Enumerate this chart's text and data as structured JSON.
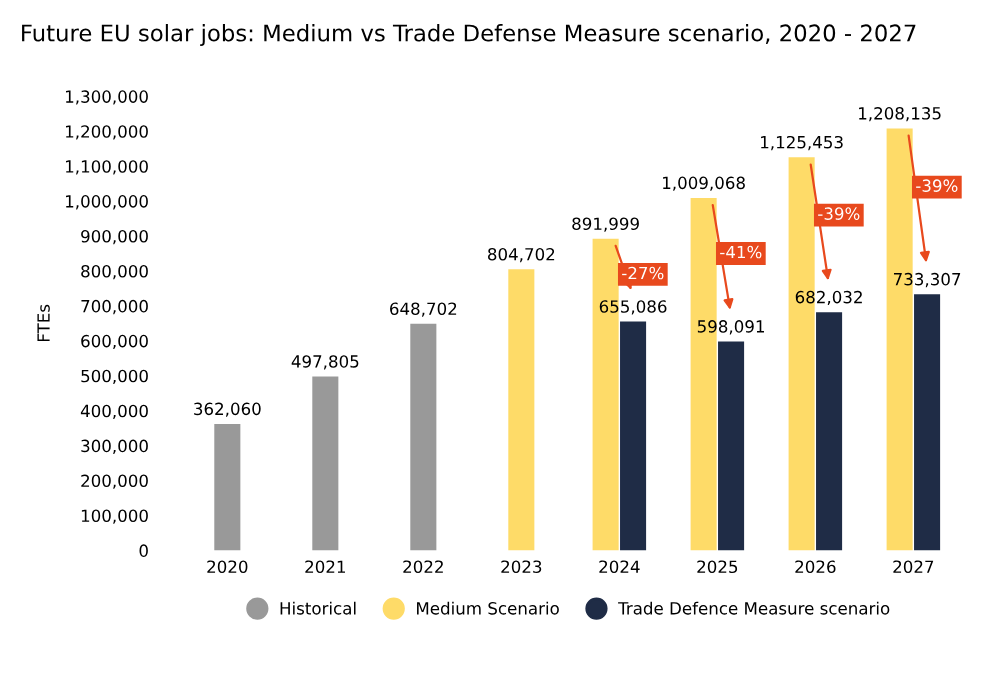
{
  "chart_data": {
    "type": "bar",
    "title": "Future EU solar jobs: Medium vs Trade Defense Measure scenario, 2020 - 2027",
    "ylabel": "FTEs",
    "categories": [
      "2020",
      "2021",
      "2022",
      "2023",
      "2024",
      "2025",
      "2026",
      "2027"
    ],
    "series": [
      {
        "name": "Historical",
        "color": "#999999",
        "values": [
          362060,
          497805,
          648702,
          null,
          null,
          null,
          null,
          null
        ],
        "value_labels": [
          "362,060",
          "497,805",
          "648,702",
          null,
          null,
          null,
          null,
          null
        ]
      },
      {
        "name": "Medium Scenario",
        "color": "#fedb68",
        "values": [
          null,
          null,
          null,
          804702,
          891999,
          1009068,
          1125453,
          1208135
        ],
        "value_labels": [
          null,
          null,
          null,
          "804,702",
          "891,999",
          "1,009,068",
          "1,125,453",
          "1,208,135"
        ]
      },
      {
        "name": "Trade Defence Measure scenario",
        "color": "#1f2c46",
        "values": [
          null,
          null,
          null,
          null,
          655086,
          598091,
          682032,
          733307
        ],
        "value_labels": [
          null,
          null,
          null,
          null,
          "655,086",
          "598,091",
          "682,032",
          "733,307"
        ]
      }
    ],
    "annotations": [
      {
        "text": "-27%",
        "x": "2024",
        "y": 790000
      },
      {
        "text": "-41%",
        "x": "2025",
        "y": 850000
      },
      {
        "text": "-39%",
        "x": "2026",
        "y": 960000
      },
      {
        "text": "-39%",
        "x": "2027",
        "y": 1040000
      }
    ],
    "ylim": [
      0,
      1300000
    ],
    "yticks": [
      {
        "value": 0,
        "label": "0"
      },
      {
        "value": 100000,
        "label": "100,000"
      },
      {
        "value": 200000,
        "label": "200,000"
      },
      {
        "value": 300000,
        "label": "300,000"
      },
      {
        "value": 400000,
        "label": "400,000"
      },
      {
        "value": 500000,
        "label": "500,000"
      },
      {
        "value": 600000,
        "label": "600,000"
      },
      {
        "value": 700000,
        "label": "700,000"
      },
      {
        "value": 800000,
        "label": "800,000"
      },
      {
        "value": 900000,
        "label": "900,000"
      },
      {
        "value": 1000000,
        "label": "1,000,000"
      },
      {
        "value": 1100000,
        "label": "1,100,000"
      },
      {
        "value": 1200000,
        "label": "1,200,000"
      },
      {
        "value": 1300000,
        "label": "1,300,000"
      }
    ],
    "legend": "bottom",
    "grid": false
  }
}
